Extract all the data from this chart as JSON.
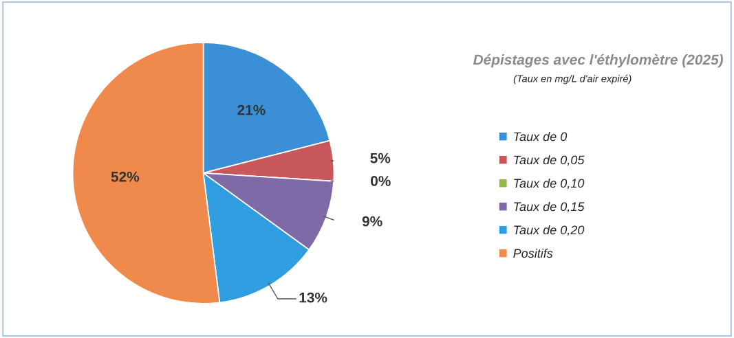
{
  "chart_data": {
    "type": "pie",
    "title": "Dépistages avec l'éthylomètre (2025)",
    "subtitle": "(Taux en mg/L d'air expiré)",
    "categories": [
      "Taux de 0",
      "Taux de 0,05",
      "Taux de 0,10",
      "Taux de 0,15",
      "Taux de 0,20",
      "Positifs"
    ],
    "values": [
      21,
      5,
      0,
      9,
      13,
      52
    ],
    "value_labels": [
      "21%",
      "5%",
      "0%",
      "9%",
      "13%",
      "52%"
    ],
    "colors": [
      "#3b8fd6",
      "#c9585c",
      "#93b84e",
      "#7e6aa6",
      "#2f9de0",
      "#f08a4c"
    ],
    "legend": "right"
  }
}
